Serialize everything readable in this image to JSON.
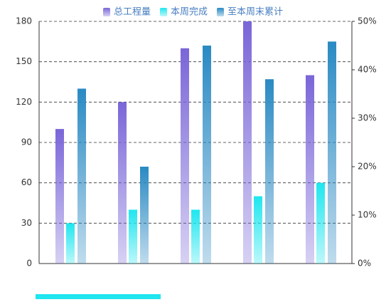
{
  "chart_data": {
    "type": "bar",
    "categories": [
      null,
      null,
      null,
      null,
      null
    ],
    "series": [
      {
        "name": "总工程量",
        "color": "#7a66d8",
        "values": [
          100,
          120,
          160,
          180,
          140
        ]
      },
      {
        "name": "本周完成",
        "color": "#1fe6ef",
        "values": [
          30,
          40,
          40,
          50,
          60
        ]
      },
      {
        "name": "至本周末累计",
        "color": "#2a8ac3",
        "values": [
          130,
          72,
          162,
          137,
          165
        ]
      }
    ],
    "ylim": [
      0,
      180
    ],
    "yticks": [
      0,
      30,
      60,
      90,
      120,
      150,
      180
    ],
    "y2lim": [
      0,
      50
    ],
    "y2ticks": [
      {
        "value": 0,
        "label": "0%"
      },
      {
        "value": 10,
        "label": "10%"
      },
      {
        "value": 20,
        "label": "20%"
      },
      {
        "value": 30,
        "label": "30%"
      },
      {
        "value": 40,
        "label": "40%"
      },
      {
        "value": 50,
        "label": "50%"
      }
    ],
    "grid": true
  }
}
